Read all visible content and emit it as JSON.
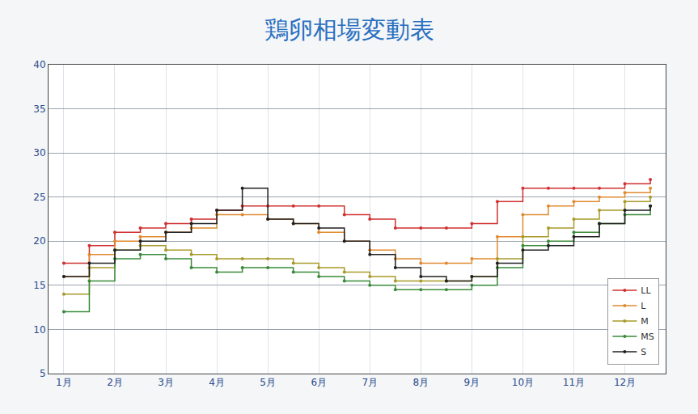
{
  "chart_data": {
    "type": "line",
    "title": "鶏卵相場変動表",
    "x": [
      1,
      1.5,
      2,
      2.5,
      3,
      3.5,
      4,
      4.5,
      5,
      5.5,
      6,
      6.5,
      7,
      7.5,
      8,
      8.5,
      9,
      9.5,
      10,
      10.5,
      11,
      11.5,
      12,
      12.5
    ],
    "series": [
      {
        "name": "LL",
        "color": "#d03030",
        "values": [
          17.5,
          19.5,
          21,
          21.5,
          22,
          22.5,
          23.5,
          24,
          24,
          24,
          24,
          23,
          22.5,
          21.5,
          21.5,
          21.5,
          22,
          24.5,
          26,
          26,
          26,
          26,
          26.5,
          27
        ]
      },
      {
        "name": "L",
        "color": "#e08a30",
        "values": [
          16,
          18.5,
          20,
          20.5,
          21,
          21.5,
          23,
          23,
          22.5,
          22,
          21,
          20,
          19,
          18,
          17.5,
          17.5,
          18,
          20.5,
          23,
          24,
          24.5,
          25,
          25.5,
          26
        ]
      },
      {
        "name": "M",
        "color": "#a89a2a",
        "values": [
          14,
          17,
          19,
          19.5,
          19,
          18.5,
          18,
          18,
          18,
          17.5,
          17,
          16.5,
          16,
          15.5,
          15.5,
          15.5,
          16,
          18,
          20.5,
          21.5,
          22.5,
          23.5,
          24.5,
          25
        ]
      },
      {
        "name": "MS",
        "color": "#3a8a3a",
        "values": [
          12,
          15.5,
          18,
          18.5,
          18,
          17,
          16.5,
          17,
          17,
          16.5,
          16,
          15.5,
          15,
          14.5,
          14.5,
          14.5,
          15,
          17,
          19.5,
          20,
          21,
          22,
          23,
          24
        ]
      },
      {
        "name": "S",
        "color": "#202020",
        "values": [
          16,
          17.5,
          19,
          20,
          21,
          22,
          23.5,
          26,
          22.5,
          22,
          21.5,
          20,
          18.5,
          17,
          16,
          15.5,
          16,
          17.5,
          19,
          19.5,
          20.5,
          22,
          23.5,
          24
        ]
      }
    ],
    "xlim": [
      0.7,
      12.8
    ],
    "xticks": [
      {
        "value": 1,
        "label": "1月"
      },
      {
        "value": 2,
        "label": "2月"
      },
      {
        "value": 3,
        "label": "3月"
      },
      {
        "value": 4,
        "label": "4月"
      },
      {
        "value": 5,
        "label": "5月"
      },
      {
        "value": 6,
        "label": "6月"
      },
      {
        "value": 7,
        "label": "7月"
      },
      {
        "value": 8,
        "label": "8月"
      },
      {
        "value": 9,
        "label": "9月"
      },
      {
        "value": 10,
        "label": "10月"
      },
      {
        "value": 11,
        "label": "11月"
      },
      {
        "value": 12,
        "label": "12月"
      }
    ],
    "ylim": [
      5,
      40
    ],
    "yticks": [
      5,
      10,
      15,
      20,
      25,
      30,
      35,
      40
    ],
    "grid": true,
    "legend": "lower right",
    "marker": "circle"
  }
}
